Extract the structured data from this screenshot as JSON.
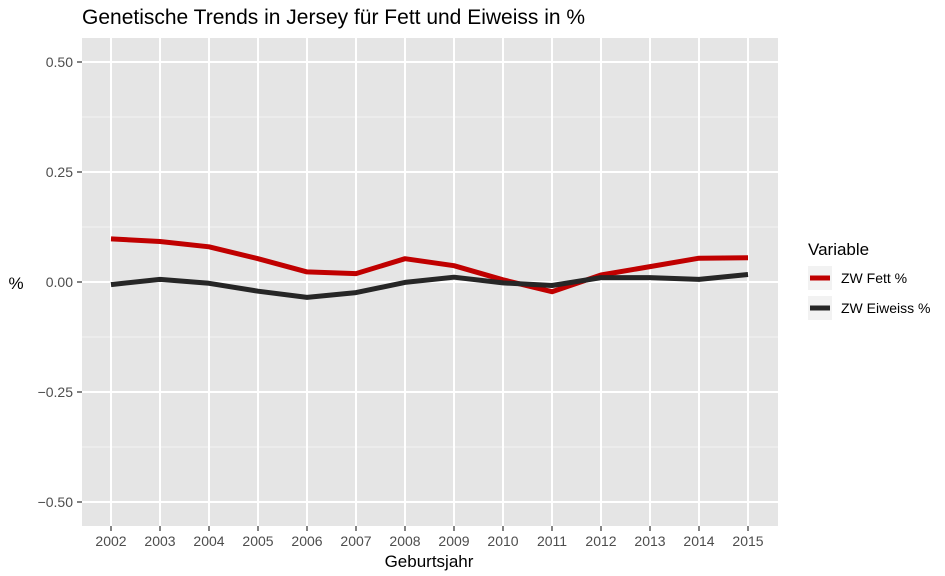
{
  "chart_data": {
    "type": "line",
    "title": "Genetische Trends in Jersey für Fett und Eiweiss in %",
    "xlabel": "Geburtsjahr",
    "ylabel": "%",
    "x": [
      "2002",
      "2003",
      "2004",
      "2005",
      "2006",
      "2007",
      "2008",
      "2009",
      "2010",
      "2011",
      "2012",
      "2013",
      "2014",
      "2015"
    ],
    "y_ticks": [
      "0.50",
      "0.25",
      "0.00",
      "−0.25",
      "−0.50"
    ],
    "y_tick_values": [
      0.5,
      0.25,
      0,
      -0.25,
      -0.5
    ],
    "ylim": [
      -0.52,
      0.52
    ],
    "grid": true,
    "legend": {
      "title": "Variable",
      "position": "right"
    },
    "series": [
      {
        "name": "ZW Fett %",
        "color": "#c00000",
        "values": [
          0.098,
          0.092,
          0.08,
          0.053,
          0.023,
          0.019,
          0.053,
          0.037,
          0.005,
          -0.022,
          0.016,
          0.035,
          0.054,
          0.055
        ]
      },
      {
        "name": "ZW Eiweiss %",
        "color": "#262626",
        "values": [
          -0.006,
          0.006,
          -0.003,
          -0.021,
          -0.035,
          -0.024,
          -0.001,
          0.011,
          -0.002,
          -0.008,
          0.01,
          0.01,
          0.006,
          0.017
        ]
      }
    ]
  }
}
